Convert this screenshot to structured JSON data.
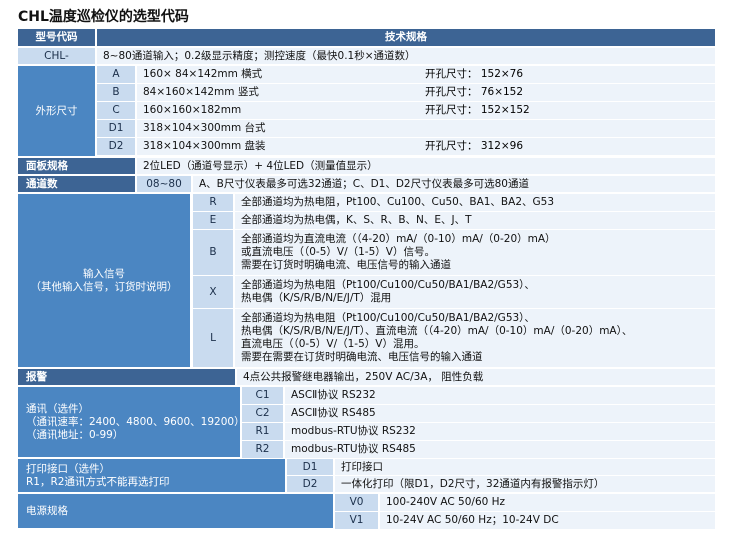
{
  "title": "CHL温度巡检仪的选型代码",
  "header": {
    "code": "型号代码",
    "spec": "技术规格"
  },
  "base": {
    "code": "CHL-",
    "spec": "8~80通道输入；0.2级显示精度；测控速度（最快0.1秒×通道数）"
  },
  "shape": {
    "label": "外形尺寸",
    "items": [
      {
        "code": "A",
        "size": "160× 84×142mm 横式",
        "cutout": "开孔尺寸： 152×76"
      },
      {
        "code": "B",
        "size": "84×160×142mm 竖式",
        "cutout": "开孔尺寸： 76×152"
      },
      {
        "code": "C",
        "size": "160×160×182mm",
        "cutout": "开孔尺寸： 152×152"
      },
      {
        "code": "D1",
        "size": "318×104×300mm 台式"
      },
      {
        "code": "D2",
        "size": "318×104×300mm 盘装",
        "cutout": "开孔尺寸： 312×96"
      }
    ]
  },
  "panel": {
    "label": "面板规格",
    "spec": "2位LED（通道号显示）+ 4位LED（测量值显示）"
  },
  "channels": {
    "label": "通道数",
    "code": "08~80",
    "spec": "A、B尺寸仪表最多可选32通道；C、D1、D2尺寸仪表最多可选80通道"
  },
  "input": {
    "label": [
      "输入信号",
      "（其他输入信号，订货时说明）"
    ],
    "items": [
      {
        "code": "R",
        "lines": [
          "全部通道均为热电阻，Pt100、Cu100、Cu50、BA1、BA2、G53"
        ]
      },
      {
        "code": "E",
        "lines": [
          "全部通道均为热电偶，K、S、R、B、N、E、J、T"
        ]
      },
      {
        "code": "B",
        "lines": [
          "全部通道均为直流电流（（4-20）mA/（0-10）mA/（0-20）mA）",
          "或直流电压（（0-5）V/（1-5）V）信号。",
          "需要在订货时明确电流、电压信号的输入通道"
        ]
      },
      {
        "code": "X",
        "lines": [
          "全部通道均为热电阻（Pt100/Cu100/Cu50/BA1/BA2/G53）、",
          "热电偶（K/S/R/B/N/E/J/T）混用"
        ]
      },
      {
        "code": "L",
        "lines": [
          "全部通道均为热电阻（Pt100/Cu100/Cu50/BA1/BA2/G53）、",
          "热电偶（K/S/R/B/N/E/J/T）、直流电流（（4-20）mA/（0-10）mA/（0-20）mA）、",
          "直流电压（（0-5）V/（1-5）V）混用。",
          "需要在需要在订货时明确电流、电压信号的输入通道"
        ]
      }
    ]
  },
  "alarm": {
    "label": "报警",
    "spec": "4点公共报警继电器输出，250V AC/3A， 阻性负载"
  },
  "comm": {
    "label": [
      "通讯（选件）",
      "（通讯速率：2400、4800、9600、19200）",
      "（通讯地址：0-99）"
    ],
    "items": [
      {
        "code": "C1",
        "spec": "ASCⅡ协议 RS232"
      },
      {
        "code": "C2",
        "spec": "ASCⅡ协议 RS485"
      },
      {
        "code": "R1",
        "spec": "modbus-RTU协议 RS232"
      },
      {
        "code": "R2",
        "spec": "modbus-RTU协议 RS485"
      }
    ]
  },
  "print": {
    "label": [
      "打印接口（选件）",
      "R1，R2通讯方式不能再选打印"
    ],
    "items": [
      {
        "code": "D1",
        "spec": "打印接口"
      },
      {
        "code": "D2",
        "spec": "一体化打印（限D1，D2尺寸，32通道内有报警指示灯）"
      }
    ]
  },
  "power": {
    "label": "电源规格",
    "items": [
      {
        "code": "V0",
        "spec": "100-240V AC 50/60 Hz"
      },
      {
        "code": "V1",
        "spec": "10-24V AC 50/60 Hz；10-24V DC"
      }
    ]
  }
}
